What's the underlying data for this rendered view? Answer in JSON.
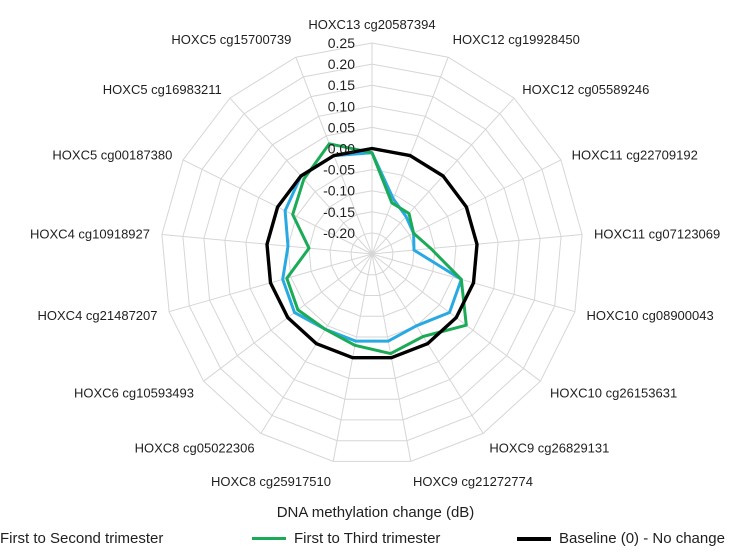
{
  "chart_data": {
    "type": "radar",
    "title": "",
    "xlabel": "DNA methylation change (dB)",
    "categories": [
      "HOXC13 cg20587394",
      "HOXC12 cg19928450",
      "HOXC12 cg05589246",
      "HOXC11 cg22709192",
      "HOXC11 cg07123069",
      "HOXC10 cg08900043",
      "HOXC10 cg26153631",
      "HOXC9 cg26829131",
      "HOXC9 cg21272774",
      "HOXC8 cg25917510",
      "HOXC8 cg05022306",
      "HOXC6 cg10593493",
      "HOXC4 cg21487207",
      "HOXC4 cg10918927",
      "HOXC5 cg00187380",
      "HOXC5 cg16983211",
      "HOXC5 cg15700739"
    ],
    "radial_ticks": [
      "0.25",
      "0.20",
      "0.15",
      "0.10",
      "0.05",
      "0.00",
      "-0.05",
      "-0.10",
      "-0.15",
      "-0.20"
    ],
    "rlim": [
      -0.25,
      0.25
    ],
    "grid": true,
    "legend_position": "bottom",
    "series": [
      {
        "name": "First to Second trimester",
        "color": "#29a9e1",
        "values": [
          -0.01,
          -0.11,
          -0.13,
          -0.14,
          -0.15,
          -0.03,
          -0.02,
          -0.05,
          -0.04,
          -0.04,
          -0.04,
          -0.02,
          -0.03,
          -0.05,
          -0.02,
          0.0,
          0.0
        ]
      },
      {
        "name": "First to Third trimester",
        "color": "#1bab57",
        "values": [
          -0.01,
          -0.12,
          -0.12,
          -0.14,
          -0.11,
          -0.03,
          0.03,
          -0.02,
          -0.01,
          -0.03,
          -0.04,
          -0.03,
          -0.04,
          -0.1,
          -0.04,
          -0.01,
          0.03
        ]
      },
      {
        "name": "Baseline (0) - No change",
        "color": "#000000",
        "values": [
          0,
          0,
          0,
          0,
          0,
          0,
          0,
          0,
          0,
          0,
          0,
          0,
          0,
          0,
          0,
          0,
          0
        ]
      }
    ]
  }
}
